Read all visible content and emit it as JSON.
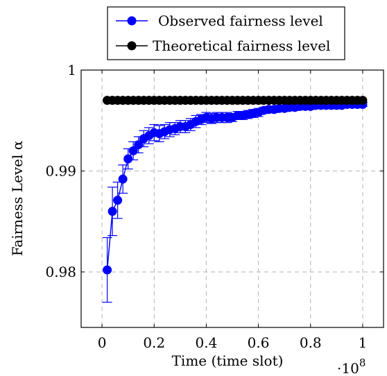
{
  "chart_data": {
    "type": "line",
    "xlabel": "Time (time slot)",
    "ylabel": "Fairness Level α",
    "x_multiplier_label": "·10",
    "x_multiplier_exp": "8",
    "xlim": [
      -0.08,
      1.08
    ],
    "ylim": [
      0.9745,
      1.0
    ],
    "xticks": [
      0,
      0.2,
      0.4,
      0.6,
      0.8,
      1
    ],
    "xtick_labels": [
      "0",
      "0.2",
      "0.4",
      "0.6",
      "0.8",
      "1"
    ],
    "yticks": [
      0.98,
      0.99,
      1.0
    ],
    "ytick_labels": [
      "0.98",
      "0.99",
      "1"
    ],
    "grid": true,
    "legend_position": "top-center",
    "series": [
      {
        "name": "Observed fairness level",
        "color": "#0000ff",
        "x": [
          0.02,
          0.04,
          0.06,
          0.08,
          0.1,
          0.12,
          0.14,
          0.16,
          0.18,
          0.2,
          0.22,
          0.24,
          0.26,
          0.28,
          0.3,
          0.32,
          0.34,
          0.36,
          0.38,
          0.4,
          0.42,
          0.44,
          0.46,
          0.48,
          0.5,
          0.52,
          0.54,
          0.56,
          0.58,
          0.6,
          0.62,
          0.64,
          0.66,
          0.68,
          0.7,
          0.72,
          0.74,
          0.76,
          0.78,
          0.8,
          0.82,
          0.84,
          0.86,
          0.88,
          0.9,
          0.92,
          0.94,
          0.96,
          0.98,
          1.0
        ],
        "y": [
          0.9802,
          0.986,
          0.9871,
          0.9892,
          0.9912,
          0.992,
          0.9926,
          0.9932,
          0.9935,
          0.9938,
          0.9937,
          0.9939,
          0.9941,
          0.9942,
          0.9944,
          0.9944,
          0.9946,
          0.9949,
          0.9951,
          0.9953,
          0.9952,
          0.9953,
          0.9953,
          0.9953,
          0.9953,
          0.9955,
          0.9955,
          0.9956,
          0.9957,
          0.9958,
          0.996,
          0.9961,
          0.9961,
          0.9962,
          0.9962,
          0.9963,
          0.9963,
          0.9964,
          0.9964,
          0.9964,
          0.9965,
          0.9965,
          0.9965,
          0.9965,
          0.9965,
          0.9965,
          0.9966,
          0.9966,
          0.9966,
          0.9966
        ],
        "err": [
          0.0032,
          0.0024,
          0.0018,
          0.0014,
          0.001,
          0.0009,
          0.0008,
          0.0008,
          0.0008,
          0.0008,
          0.0008,
          0.0007,
          0.0007,
          0.0006,
          0.0006,
          0.0006,
          0.0006,
          0.0006,
          0.0005,
          0.0005,
          0.0005,
          0.0005,
          0.0005,
          0.0005,
          0.0004,
          0.0004,
          0.0004,
          0.0004,
          0.0004,
          0.0004,
          0.0003,
          0.0003,
          0.0003,
          0.0003,
          0.0003,
          0.0003,
          0.0003,
          0.0003,
          0.0003,
          0.0003,
          0.0003,
          0.0003,
          0.0003,
          0.0002,
          0.0002,
          0.0002,
          0.0002,
          0.0002,
          0.0002,
          0.0002
        ]
      },
      {
        "name": "Theoretical fairness level",
        "color": "#000000",
        "x": [
          0.02,
          0.04,
          0.06,
          0.08,
          0.1,
          0.12,
          0.14,
          0.16,
          0.18,
          0.2,
          0.22,
          0.24,
          0.26,
          0.28,
          0.3,
          0.32,
          0.34,
          0.36,
          0.38,
          0.4,
          0.42,
          0.44,
          0.46,
          0.48,
          0.5,
          0.52,
          0.54,
          0.56,
          0.58,
          0.6,
          0.62,
          0.64,
          0.66,
          0.68,
          0.7,
          0.72,
          0.74,
          0.76,
          0.78,
          0.8,
          0.82,
          0.84,
          0.86,
          0.88,
          0.9,
          0.92,
          0.94,
          0.96,
          0.98,
          1.0
        ],
        "y": [
          0.997,
          0.997,
          0.997,
          0.997,
          0.997,
          0.997,
          0.997,
          0.997,
          0.997,
          0.997,
          0.997,
          0.997,
          0.997,
          0.997,
          0.997,
          0.997,
          0.997,
          0.997,
          0.997,
          0.997,
          0.997,
          0.997,
          0.997,
          0.997,
          0.997,
          0.997,
          0.997,
          0.997,
          0.997,
          0.997,
          0.997,
          0.997,
          0.997,
          0.997,
          0.997,
          0.997,
          0.997,
          0.997,
          0.997,
          0.997,
          0.997,
          0.997,
          0.997,
          0.997,
          0.997,
          0.997,
          0.997,
          0.997,
          0.997,
          0.997
        ]
      }
    ]
  }
}
